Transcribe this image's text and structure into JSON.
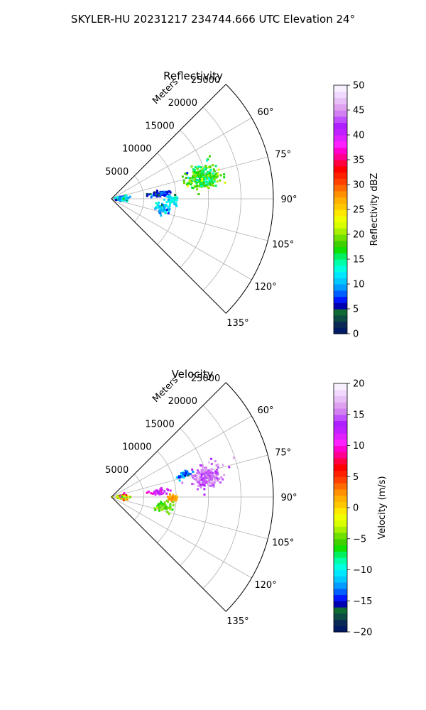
{
  "figure": {
    "title": "SKYLER-HU  20231217  234744.666 UTC Elevation 24°"
  },
  "chart_data": [
    {
      "type": "polar-sector-ppi",
      "title": "Reflectivity",
      "range_axis_label": "Meters",
      "range_ticks": [
        5000,
        10000,
        15000,
        20000,
        25000
      ],
      "range_tick_labels": [
        "5000",
        "10000",
        "15000",
        "20000",
        "25000"
      ],
      "range_lim": [
        0,
        25000
      ],
      "azimuth_lim_deg": [
        45,
        135
      ],
      "azimuth_ticks_deg": [
        60,
        75,
        90,
        105,
        120,
        135
      ],
      "azimuth_tick_labels": [
        "60°",
        "75°",
        "90°",
        "105°",
        "120°",
        "135°"
      ],
      "grid": true,
      "colorbar": {
        "label": "Reflectivity dBZ",
        "min": 0,
        "max": 50,
        "ticks": [
          0,
          5,
          10,
          15,
          20,
          25,
          30,
          35,
          40,
          45,
          50
        ],
        "tick_labels": [
          "0",
          "5",
          "10",
          "15",
          "20",
          "25",
          "30",
          "35",
          "40",
          "45",
          "50"
        ],
        "colors": [
          "#001a66",
          "#0a2a55",
          "#0d4a44",
          "#0f6a33",
          "#0000b0",
          "#0018ff",
          "#0060ff",
          "#009cff",
          "#00c8ff",
          "#00e8ff",
          "#00ffe0",
          "#00ffa8",
          "#00f060",
          "#10e000",
          "#40d000",
          "#70e000",
          "#a8f000",
          "#d8ff00",
          "#f0ff00",
          "#ffe800",
          "#ffc800",
          "#ffb000",
          "#ff9000",
          "#ff6a00",
          "#ff4000",
          "#ff2000",
          "#ff0000",
          "#ff0040",
          "#ff0090",
          "#ff00d0",
          "#ff20ff",
          "#e020ff",
          "#c020ff",
          "#b020ff",
          "#c050ff",
          "#d080f0",
          "#e0a0f0",
          "#e8c0f8",
          "#f0d8ff",
          "#f8f0ff"
        ]
      },
      "data_clusters": [
        {
          "az_center": 77,
          "az_spread": 6,
          "r_center": 14500,
          "r_spread": 2300,
          "value": 17,
          "value_spread": 4,
          "density": 260
        },
        {
          "az_center": 84,
          "az_spread": 3,
          "r_center": 7500,
          "r_spread": 1400,
          "value": 7,
          "value_spread": 3,
          "density": 70
        },
        {
          "az_center": 91,
          "az_spread": 3,
          "r_center": 9500,
          "r_spread": 800,
          "value": 12,
          "value_spread": 2,
          "density": 45
        },
        {
          "az_center": 100,
          "az_spread": 5,
          "r_center": 8200,
          "r_spread": 1000,
          "value": 11,
          "value_spread": 3,
          "density": 60
        },
        {
          "az_center": 90,
          "az_spread": 10,
          "r_center": 1600,
          "r_spread": 900,
          "value": 11,
          "value_spread": 4,
          "density": 90
        }
      ]
    },
    {
      "type": "polar-sector-ppi",
      "title": "Velocity",
      "range_axis_label": "Meters",
      "range_ticks": [
        5000,
        10000,
        15000,
        20000,
        25000
      ],
      "range_tick_labels": [
        "5000",
        "10000",
        "15000",
        "20000",
        "25000"
      ],
      "range_lim": [
        0,
        25000
      ],
      "azimuth_lim_deg": [
        45,
        135
      ],
      "azimuth_ticks_deg": [
        60,
        75,
        90,
        105,
        120,
        135
      ],
      "azimuth_tick_labels": [
        "60°",
        "75°",
        "90°",
        "105°",
        "120°",
        "135°"
      ],
      "grid": true,
      "colorbar": {
        "label": "Velocity (m/s)",
        "min": -20,
        "max": 20,
        "ticks": [
          -20,
          -15,
          -10,
          -5,
          0,
          5,
          10,
          15,
          20
        ],
        "tick_labels": [
          "−20",
          "−15",
          "−10",
          "−5",
          "0",
          "5",
          "10",
          "15",
          "20"
        ],
        "colors": [
          "#001a66",
          "#0a2a55",
          "#0d4a44",
          "#0f6a33",
          "#0000b0",
          "#0018ff",
          "#0060ff",
          "#009cff",
          "#00c8ff",
          "#00e8ff",
          "#00ffe0",
          "#00ffa8",
          "#00f060",
          "#10e000",
          "#40d000",
          "#70e000",
          "#a8f000",
          "#d8ff00",
          "#f0ff00",
          "#ffe800",
          "#ffc800",
          "#ffb000",
          "#ff9000",
          "#ff6a00",
          "#ff4000",
          "#ff2000",
          "#ff0000",
          "#ff0040",
          "#ff0090",
          "#ff00d0",
          "#ff20ff",
          "#e020ff",
          "#c020ff",
          "#b020ff",
          "#c050ff",
          "#d080f0",
          "#e0a0f0",
          "#e8c0f8",
          "#f0d8ff",
          "#f8f0ff"
        ]
      },
      "data_clusters": [
        {
          "az_center": 78,
          "az_spread": 5,
          "r_center": 15000,
          "r_spread": 2000,
          "value": 15,
          "value_spread": 2,
          "density": 200
        },
        {
          "az_center": 73,
          "az_spread": 2,
          "r_center": 11500,
          "r_spread": 900,
          "value": -13,
          "value_spread": 3,
          "density": 50
        },
        {
          "az_center": 84,
          "az_spread": 3,
          "r_center": 7500,
          "r_spread": 1200,
          "value": 12,
          "value_spread": 4,
          "density": 55
        },
        {
          "az_center": 91,
          "az_spread": 3,
          "r_center": 9500,
          "r_spread": 800,
          "value": 2,
          "value_spread": 1.5,
          "density": 45
        },
        {
          "az_center": 100,
          "az_spread": 5,
          "r_center": 8200,
          "r_spread": 1000,
          "value": -5,
          "value_spread": 2,
          "density": 60
        },
        {
          "az_center": 90,
          "az_spread": 10,
          "r_center": 1600,
          "r_spread": 900,
          "value": 0,
          "value_spread": 8,
          "density": 90
        }
      ]
    }
  ]
}
